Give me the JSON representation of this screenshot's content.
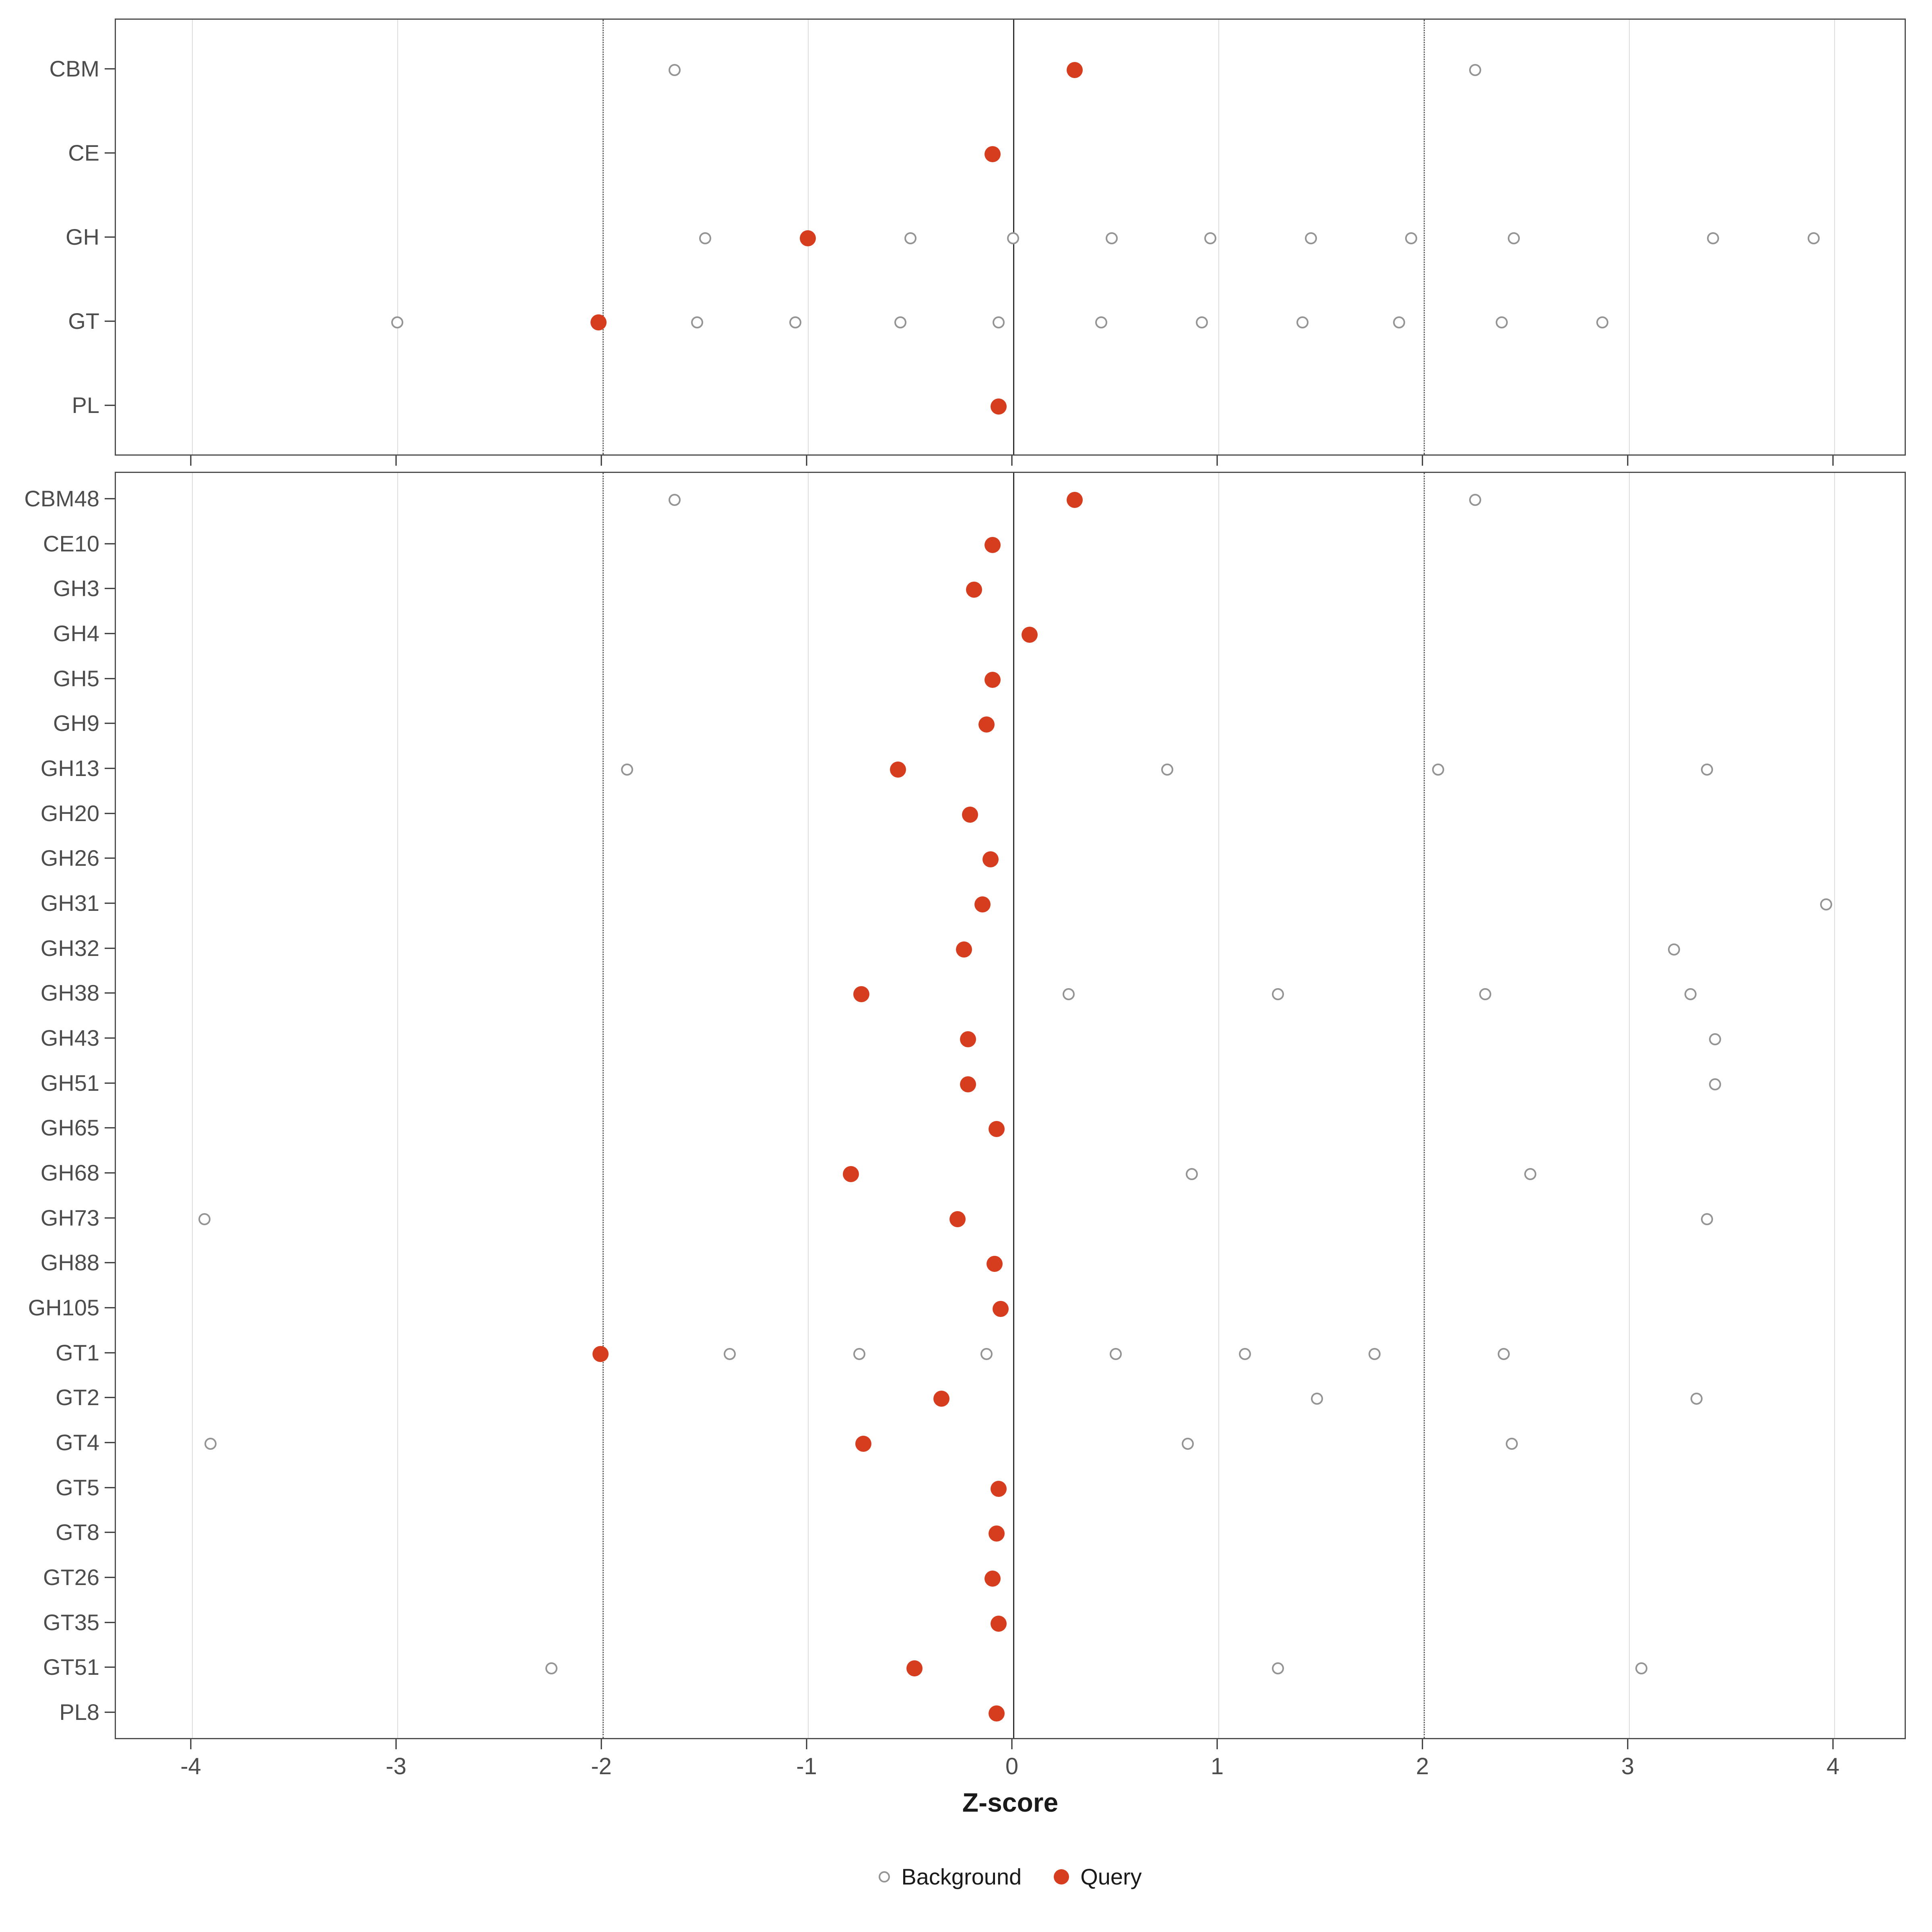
{
  "chart_data": {
    "type": "scatter",
    "title": "",
    "xlabel": "Z-score",
    "ylabel": "",
    "xlim": [
      -4.37,
      4.36
    ],
    "x_ticks": [
      -4,
      -3,
      -2,
      -1,
      0,
      1,
      2,
      3,
      4
    ],
    "grid": "major-vertical",
    "reference_lines": {
      "solid": 0,
      "dotted": [
        -2,
        2
      ]
    },
    "colors": {
      "query": "#d63d1e",
      "background_stroke": "#949494",
      "zero_line": "#2b2b2b",
      "panel_border": "#4d4d4d"
    },
    "legend": [
      {
        "label": "Background",
        "marker": "open-circle"
      },
      {
        "label": "Query",
        "marker": "filled-circle"
      }
    ],
    "legend_position": "bottom",
    "panels": [
      {
        "name": "families",
        "rows": [
          {
            "label": "CBM",
            "query": 0.3,
            "background": [
              -1.65,
              2.25
            ]
          },
          {
            "label": "CE",
            "query": -0.1,
            "background": []
          },
          {
            "label": "GH",
            "query": -1.0,
            "background": [
              -1.5,
              -0.5,
              0.0,
              0.48,
              0.96,
              1.45,
              1.94,
              2.44,
              3.41,
              3.9
            ]
          },
          {
            "label": "GT",
            "query": -2.02,
            "background": [
              -3.0,
              -1.54,
              -1.06,
              -0.55,
              -0.07,
              0.43,
              0.92,
              1.41,
              1.88,
              2.38,
              2.87
            ]
          },
          {
            "label": "PL",
            "query": -0.07,
            "background": []
          }
        ]
      },
      {
        "name": "subfamilies",
        "rows": [
          {
            "label": "CBM48",
            "query": 0.3,
            "background": [
              -1.65,
              2.25
            ]
          },
          {
            "label": "CE10",
            "query": -0.1,
            "background": []
          },
          {
            "label": "GH3",
            "query": -0.19,
            "background": []
          },
          {
            "label": "GH4",
            "query": 0.08,
            "background": []
          },
          {
            "label": "GH5",
            "query": -0.1,
            "background": []
          },
          {
            "label": "GH9",
            "query": -0.13,
            "background": []
          },
          {
            "label": "GH13",
            "query": -0.56,
            "background": [
              -1.88,
              0.75,
              2.07,
              3.38
            ]
          },
          {
            "label": "GH20",
            "query": -0.21,
            "background": []
          },
          {
            "label": "GH26",
            "query": -0.11,
            "background": []
          },
          {
            "label": "GH31",
            "query": -0.15,
            "background": [
              3.96
            ]
          },
          {
            "label": "GH32",
            "query": -0.24,
            "background": [
              3.22
            ]
          },
          {
            "label": "GH38",
            "query": -0.74,
            "background": [
              0.27,
              1.29,
              2.3,
              3.3
            ]
          },
          {
            "label": "GH43",
            "query": -0.22,
            "background": [
              3.42
            ]
          },
          {
            "label": "GH51",
            "query": -0.22,
            "background": [
              3.42
            ]
          },
          {
            "label": "GH65",
            "query": -0.08,
            "background": []
          },
          {
            "label": "GH68",
            "query": -0.79,
            "background": [
              0.87,
              2.52
            ]
          },
          {
            "label": "GH73",
            "query": -0.27,
            "background": [
              -3.94,
              3.38
            ]
          },
          {
            "label": "GH88",
            "query": -0.09,
            "background": []
          },
          {
            "label": "GH105",
            "query": -0.06,
            "background": []
          },
          {
            "label": "GT1",
            "query": -2.01,
            "background": [
              -1.38,
              -0.75,
              -0.13,
              0.5,
              1.13,
              1.76,
              2.39
            ]
          },
          {
            "label": "GT2",
            "query": -0.35,
            "background": [
              1.48,
              3.33
            ]
          },
          {
            "label": "GT4",
            "query": -0.73,
            "background": [
              -3.91,
              0.85,
              2.43
            ]
          },
          {
            "label": "GT5",
            "query": -0.07,
            "background": []
          },
          {
            "label": "GT8",
            "query": -0.08,
            "background": []
          },
          {
            "label": "GT26",
            "query": -0.1,
            "background": []
          },
          {
            "label": "GT35",
            "query": -0.07,
            "background": []
          },
          {
            "label": "GT51",
            "query": -0.48,
            "background": [
              -2.25,
              1.29,
              3.06
            ]
          },
          {
            "label": "PL8",
            "query": -0.08,
            "background": []
          }
        ]
      }
    ]
  }
}
